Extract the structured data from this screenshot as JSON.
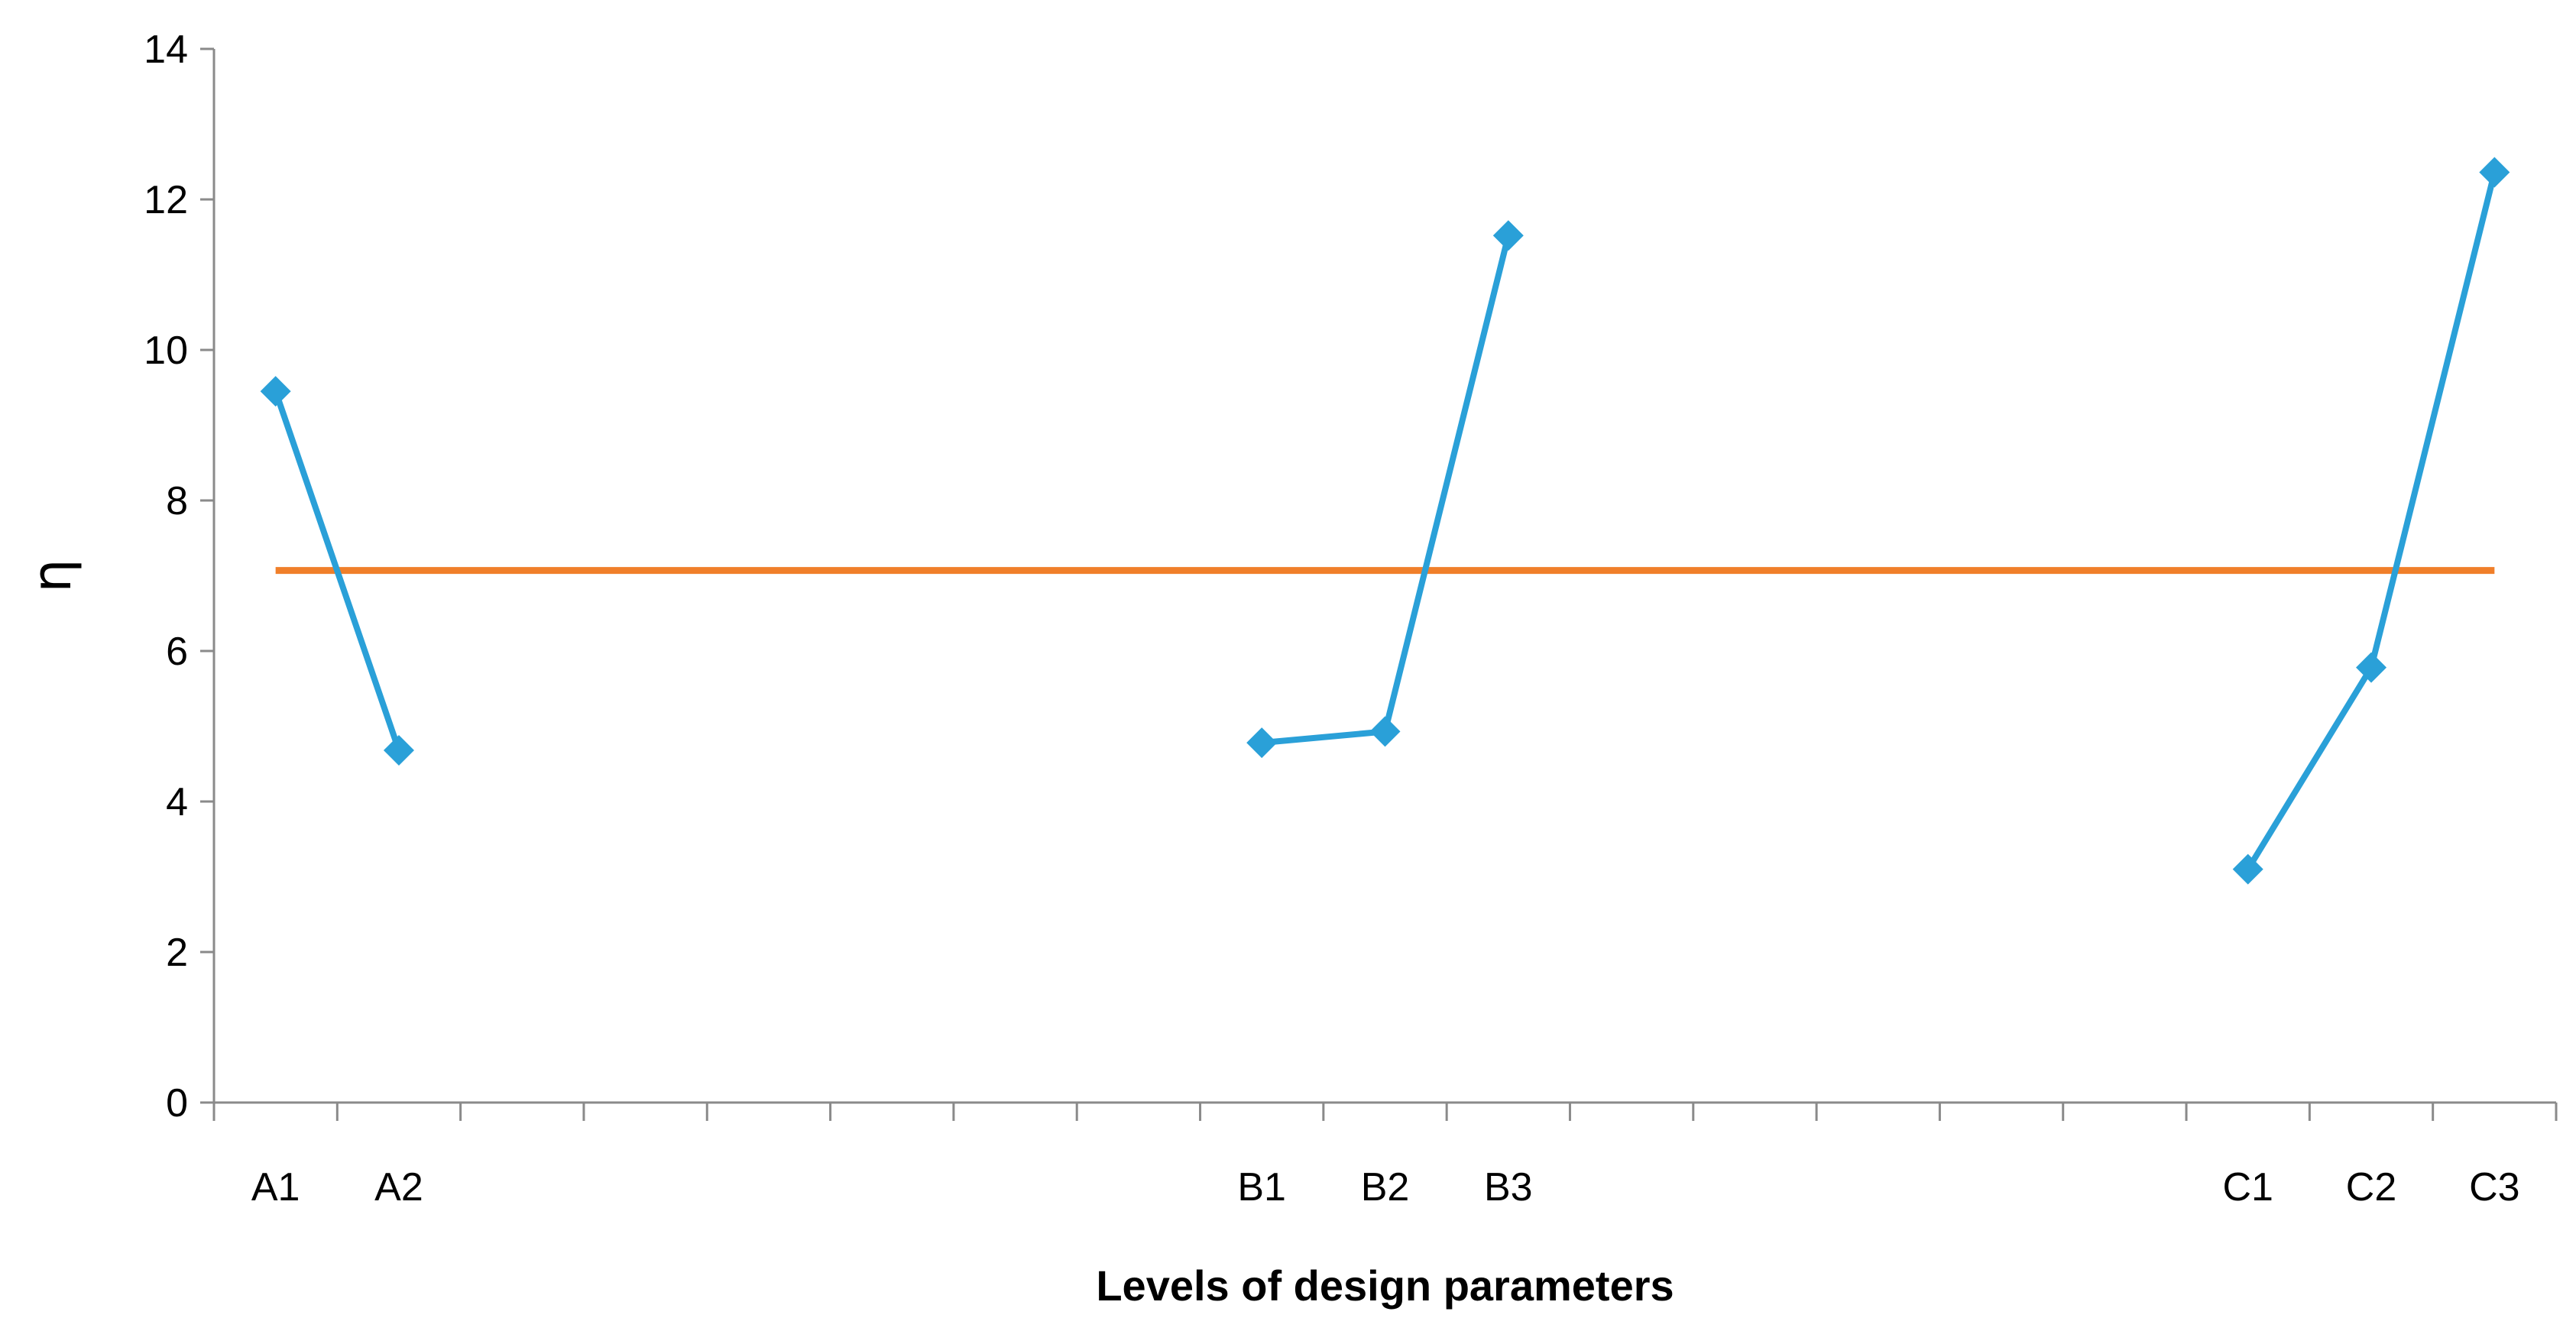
{
  "chart_data": {
    "type": "line",
    "xlabel": "Levels of design parameters",
    "ylabel": "η",
    "ylim": [
      0,
      14
    ],
    "yticks": [
      0,
      2,
      4,
      6,
      8,
      10,
      12,
      14
    ],
    "grid": false,
    "legend": "none",
    "category_slots": 19,
    "categories": [
      "A1",
      "A2",
      "",
      "",
      "",
      "",
      "",
      "",
      "B1",
      "B2",
      "B3",
      "",
      "",
      "",
      "",
      "",
      "C1",
      "C2",
      "C3"
    ],
    "series": [
      {
        "color": "#2aa0d8",
        "marker": "diamond",
        "segments": [
          {
            "points": [
              {
                "x": "A1",
                "y": 9.45
              },
              {
                "x": "A2",
                "y": 4.68
              }
            ]
          },
          {
            "points": [
              {
                "x": "B1",
                "y": 4.78
              },
              {
                "x": "B2",
                "y": 4.93
              },
              {
                "x": "B3",
                "y": 11.52
              }
            ]
          },
          {
            "points": [
              {
                "x": "C1",
                "y": 3.1
              },
              {
                "x": "C2",
                "y": 5.78
              },
              {
                "x": "C3",
                "y": 12.36
              }
            ]
          }
        ]
      },
      {
        "color": "#f07f2a",
        "marker": "none",
        "values": [
          {
            "x": "A1",
            "y": 7.07
          },
          {
            "x": "C3",
            "y": 7.07
          }
        ]
      }
    ]
  }
}
